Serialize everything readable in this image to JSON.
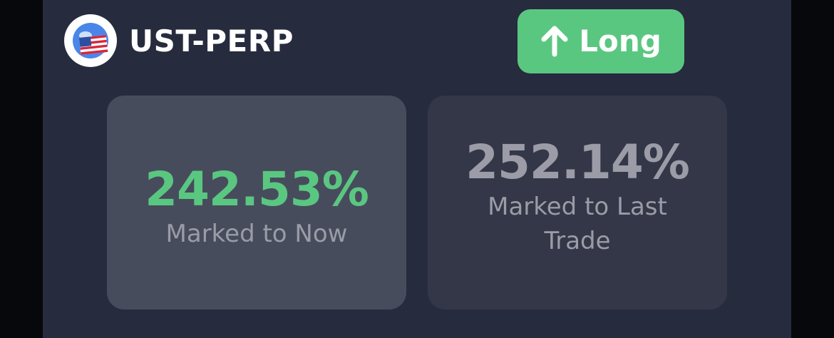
{
  "market": {
    "symbol": "UST-PERP",
    "logo_icon": "ust-flag-logo-icon"
  },
  "position": {
    "side_label": "Long",
    "side_icon": "arrow-up-icon",
    "accent_color": "#5ac781"
  },
  "cards": {
    "now": {
      "value": "242.53%",
      "caption": "Marked to Now",
      "value_color": "#5ac781"
    },
    "last_trade": {
      "value": "252.14%",
      "caption": "Marked to Last Trade",
      "value_color": "#9b9ca7"
    }
  }
}
